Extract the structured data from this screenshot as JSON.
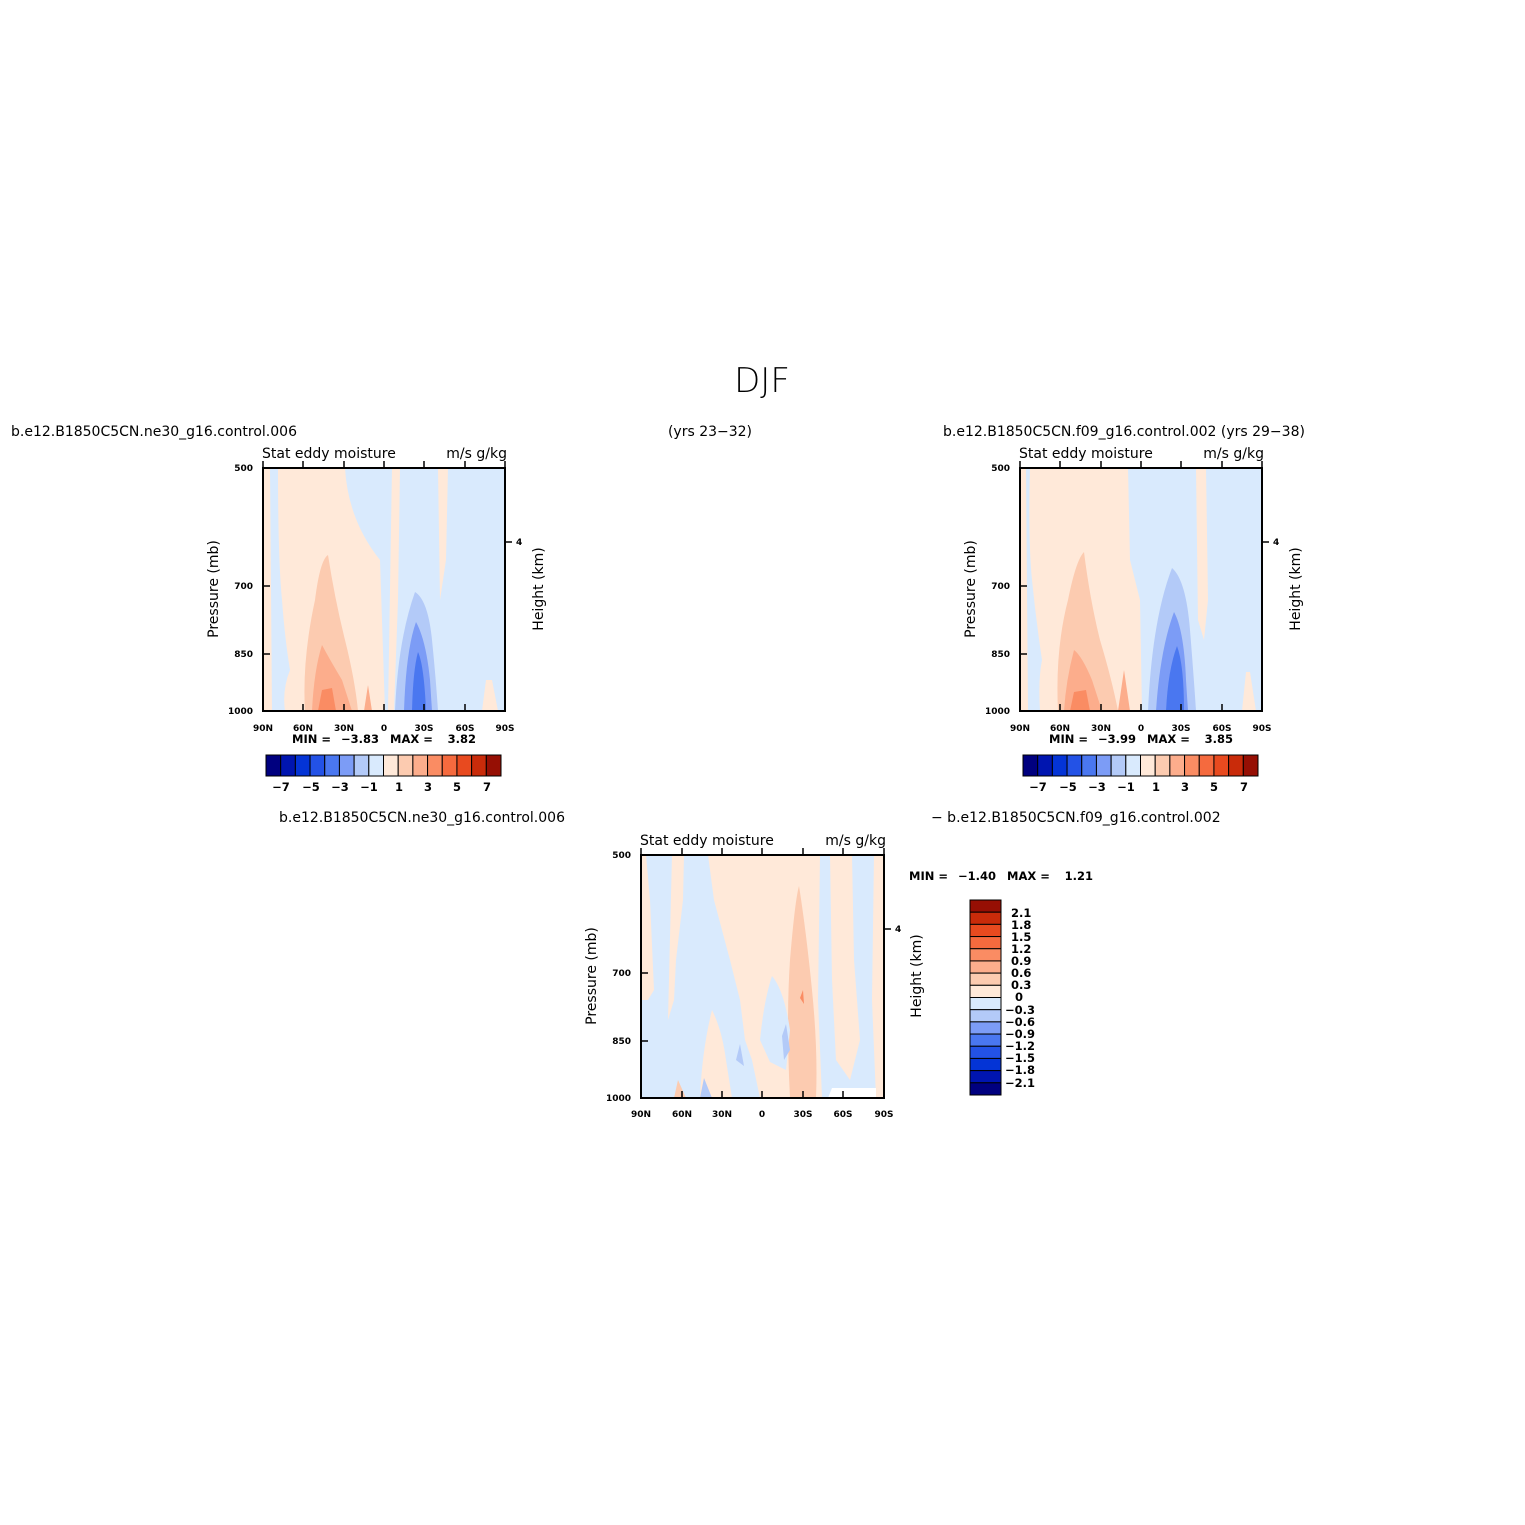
{
  "main_title": "DJF",
  "colors": {
    "neg": [
      "#00007f",
      "#0015b0",
      "#0434d6",
      "#2352e6",
      "#4a77f0",
      "#7c9cf6",
      "#b3caf8",
      "#d9eafd"
    ],
    "pos": [
      "#ffe9d9",
      "#fccbb0",
      "#fcad8c",
      "#fa8c63",
      "#f56a3e",
      "#e84a1f",
      "#c92b0a",
      "#960f04"
    ]
  },
  "chart_data": [
    {
      "type": "heatmap",
      "title": "b.e12.B1850C5CN.ne30_g16.control.006",
      "title_center": "(yrs 23-32)",
      "left_label": "Stat eddy moisture",
      "right_label": "m/s g/kg",
      "ylabel": "Pressure (mb)",
      "ylabel_right": "Height (km)",
      "xticks": [
        "90N",
        "60N",
        "30N",
        "0",
        "30S",
        "60S",
        "90S"
      ],
      "yticks": [
        "500",
        "700",
        "850",
        "1000"
      ],
      "yticks_right": [
        "4"
      ],
      "min_label": "MIN =",
      "min_value": "-3.83",
      "max_label": "MAX =",
      "max_value": "3.82",
      "colorbar_labels": [
        "-7",
        "-5",
        "-3",
        "-1",
        "1",
        "3",
        "5",
        "7"
      ]
    },
    {
      "type": "heatmap",
      "title": "b.e12.B1850C5CN.f09_g16.control.002 (yrs 29-38)",
      "left_label": "Stat eddy moisture",
      "right_label": "m/s g/kg",
      "ylabel": "Pressure (mb)",
      "ylabel_right": "Height (km)",
      "xticks": [
        "90N",
        "60N",
        "30N",
        "0",
        "30S",
        "60S",
        "90S"
      ],
      "yticks": [
        "500",
        "700",
        "850",
        "1000"
      ],
      "yticks_right": [
        "4"
      ],
      "min_label": "MIN =",
      "min_value": "-3.99",
      "max_label": "MAX =",
      "max_value": "3.85",
      "colorbar_labels": [
        "-7",
        "-5",
        "-3",
        "-1",
        "1",
        "3",
        "5",
        "7"
      ]
    },
    {
      "type": "heatmap",
      "title_left": "b.e12.B1850C5CN.ne30_g16.control.006",
      "title_right": "- b.e12.B1850C5CN.f09_g16.control.002",
      "left_label": "Stat eddy moisture",
      "right_label": "m/s g/kg",
      "ylabel": "Pressure (mb)",
      "ylabel_right": "Height (km)",
      "xticks": [
        "90N",
        "60N",
        "30N",
        "0",
        "30S",
        "60S",
        "90S"
      ],
      "yticks": [
        "500",
        "700",
        "850",
        "1000"
      ],
      "yticks_right": [
        "4"
      ],
      "min_label": "MIN =",
      "min_value": "-1.40",
      "max_label": "MAX =",
      "max_value": "1.21",
      "colorbar_labels": [
        "2.1",
        "1.8",
        "1.5",
        "1.2",
        "0.9",
        "0.6",
        "0.3",
        "0",
        "-0.3",
        "-0.6",
        "-0.9",
        "-1.2",
        "-1.5",
        "-1.8",
        "-2.1"
      ]
    }
  ]
}
